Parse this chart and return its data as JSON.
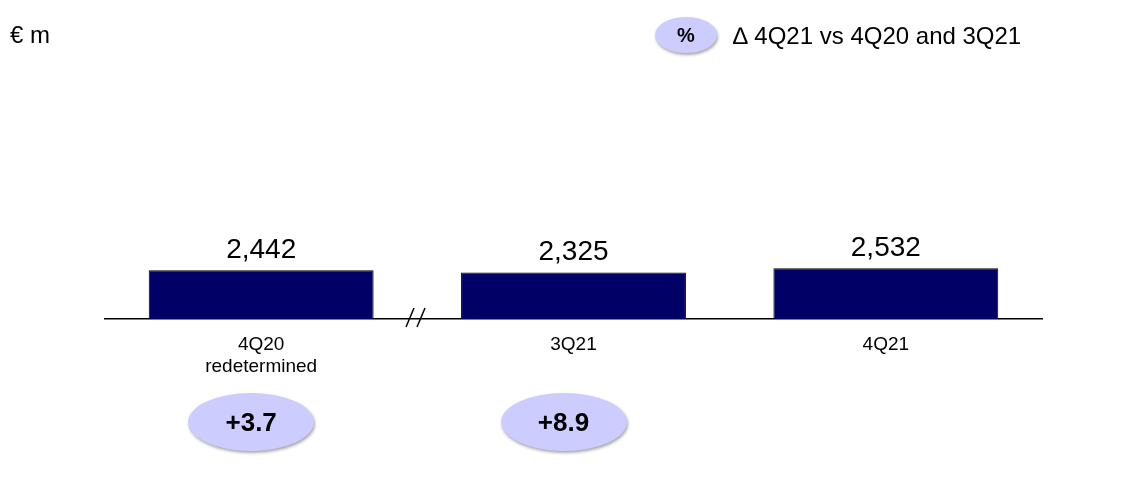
{
  "chart_data": {
    "type": "bar",
    "categories": [
      "4Q20 redetermined",
      "3Q21",
      "4Q21"
    ],
    "values": [
      2442,
      2325,
      2532
    ],
    "value_labels": [
      "2,442",
      "2,325",
      "2,532"
    ],
    "color": "#000066",
    "grid": false,
    "legend": false,
    "annotations": [
      "€ m",
      "%",
      "∆ 4Q21 vs 4Q20 and 3Q21",
      "+3.7",
      "+8.9"
    ]
  }
}
